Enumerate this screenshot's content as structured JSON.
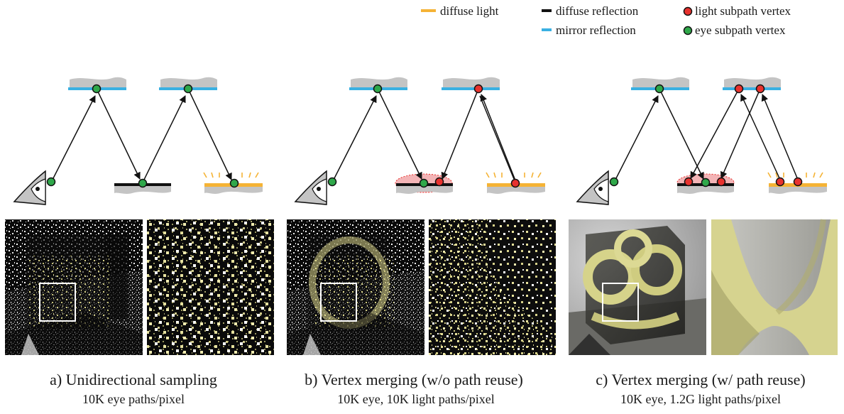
{
  "legend": {
    "items": [
      {
        "key": "diffuse_light",
        "label": "diffuse light",
        "symbol": "bar",
        "color": "#f5b335"
      },
      {
        "key": "diffuse_reflection",
        "label": "diffuse reflection",
        "symbol": "bar",
        "color": "#111111"
      },
      {
        "key": "light_vertex",
        "label": "light subpath vertex",
        "symbol": "dot",
        "color": "#e8322e"
      },
      {
        "key": "mirror_reflection",
        "label": "mirror reflection",
        "symbol": "bar",
        "color": "#3ab0e2"
      },
      {
        "key": "eye_vertex",
        "label": "eye subpath vertex",
        "symbol": "dot",
        "color": "#2fa84a"
      }
    ]
  },
  "panels": [
    {
      "id": "a",
      "caption": "a) Unidirectional sampling",
      "subcaption": "10K eye paths/pixel",
      "render": "noisy",
      "zoom": "noisy"
    },
    {
      "id": "b",
      "caption": "b) Vertex merging (w/o path reuse)",
      "subcaption": "10K eye, 10K light paths/pixel",
      "render": "noisy-structured",
      "zoom": "noisy-structured"
    },
    {
      "id": "c",
      "caption": "c) Vertex merging (w/ path reuse)",
      "subcaption": "10K eye, 1.2G light paths/pixel",
      "render": "converged",
      "zoom": "converged"
    }
  ],
  "colors": {
    "eye_vertex": "#2fa84a",
    "light_vertex": "#e8322e",
    "mirror": "#3ab0e2",
    "diffuse_light": "#f5b335",
    "diffuse_reflection": "#111111",
    "surface": "#c4c4c4",
    "merge_region": "#f3b4b6"
  }
}
